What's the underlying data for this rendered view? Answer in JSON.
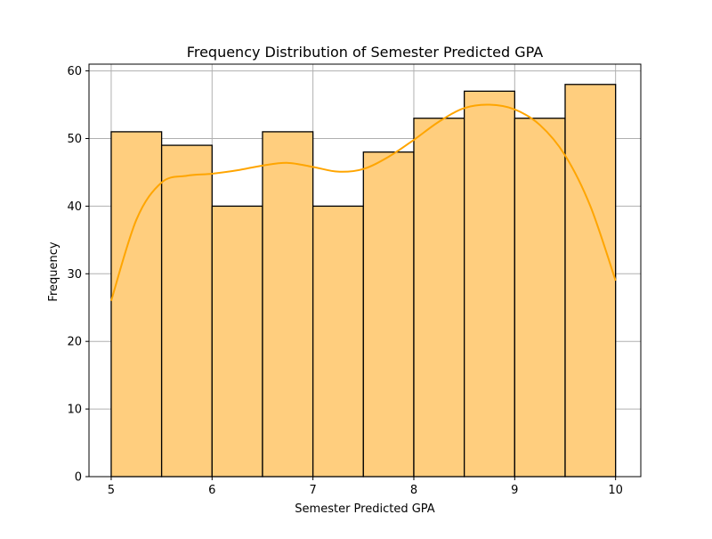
{
  "chart_data": {
    "type": "bar",
    "title": "Frequency Distribution of Semester Predicted GPA",
    "xlabel": "Semester Predicted GPA",
    "ylabel": "Frequency",
    "bins": [
      {
        "start": 5.0,
        "end": 5.5,
        "value": 51
      },
      {
        "start": 5.5,
        "end": 6.0,
        "value": 49
      },
      {
        "start": 6.0,
        "end": 6.5,
        "value": 40
      },
      {
        "start": 6.5,
        "end": 7.0,
        "value": 51
      },
      {
        "start": 7.0,
        "end": 7.5,
        "value": 40
      },
      {
        "start": 7.5,
        "end": 8.0,
        "value": 48
      },
      {
        "start": 8.0,
        "end": 8.5,
        "value": 53
      },
      {
        "start": 8.5,
        "end": 9.0,
        "value": 57
      },
      {
        "start": 9.0,
        "end": 9.5,
        "value": 53
      },
      {
        "start": 9.5,
        "end": 10.0,
        "value": 58
      }
    ],
    "kde": {
      "x": [
        5.0,
        5.25,
        5.5,
        5.75,
        6.0,
        6.25,
        6.5,
        6.75,
        7.0,
        7.25,
        7.5,
        7.75,
        8.0,
        8.25,
        8.5,
        8.75,
        9.0,
        9.25,
        9.5,
        9.75,
        10.0
      ],
      "y": [
        26,
        38,
        43.5,
        44.5,
        44.8,
        45.3,
        46.0,
        46.4,
        45.8,
        45.1,
        45.5,
        47.3,
        49.8,
        52.5,
        54.5,
        55.0,
        54.3,
        52.0,
        47.5,
        40.0,
        29.0
      ]
    },
    "xlim": [
      4.78,
      10.25
    ],
    "ylim": [
      0,
      61
    ],
    "xticks": [
      5,
      6,
      7,
      8,
      9,
      10
    ],
    "yticks": [
      0,
      10,
      20,
      30,
      40,
      50,
      60
    ],
    "grid": true,
    "colors": {
      "bar_fill": "#ffce7e",
      "bar_edge": "#000000",
      "kde_line": "#ffa500",
      "grid": "#b0b0b0",
      "axis": "#000000"
    }
  }
}
